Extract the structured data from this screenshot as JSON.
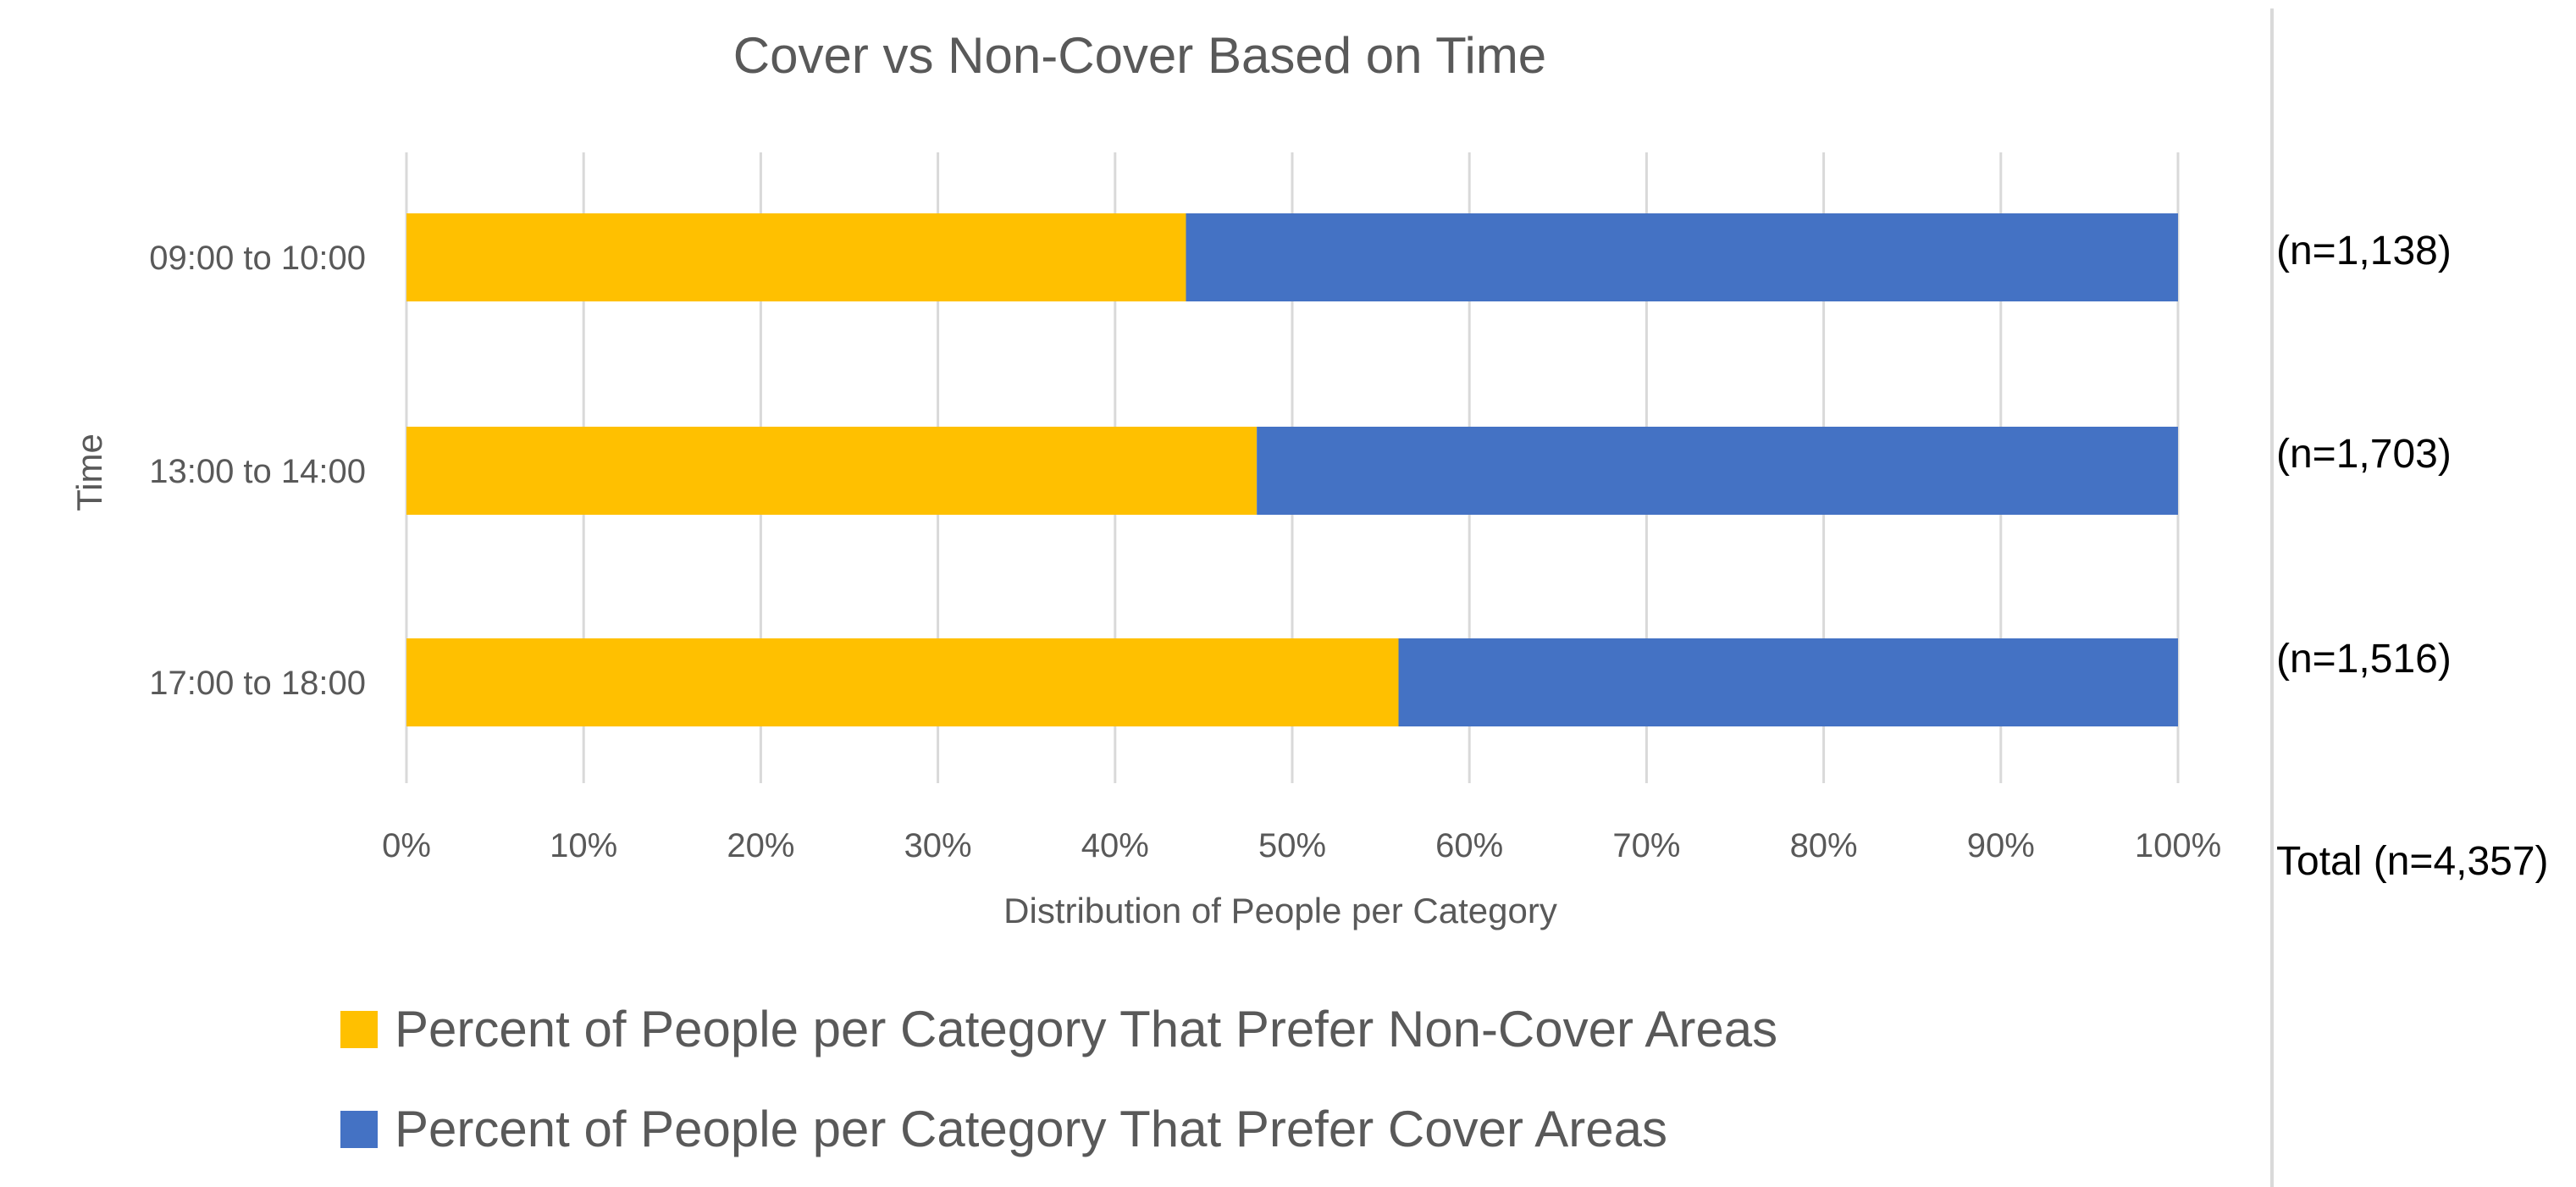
{
  "chart_data": {
    "type": "bar",
    "orientation": "horizontal",
    "stacked": "percent",
    "title": "Cover vs Non-Cover Based on Time",
    "xlabel": "Distribution of People per Category",
    "ylabel": "Time",
    "categories": [
      "09:00 to 10:00",
      "13:00 to 14:00",
      "17:00 to 18:00"
    ],
    "series": [
      {
        "name": "Percent of People per Category That Prefer Non-Cover Areas",
        "color": "#FFC000",
        "values": [
          44,
          48,
          56
        ]
      },
      {
        "name": "Percent of People per Category That Prefer Cover Areas",
        "color": "#4472C4",
        "values": [
          56,
          52,
          44
        ]
      }
    ],
    "xlim": [
      0,
      100
    ],
    "x_ticks": [
      "0%",
      "10%",
      "20%",
      "30%",
      "40%",
      "50%",
      "60%",
      "70%",
      "80%",
      "90%",
      "100%"
    ],
    "grid": true,
    "legend_position": "bottom",
    "annotations": [
      "(n=1,138)",
      "(n=1,703)",
      "(n=1,516)"
    ],
    "total_annotation": "Total (n=4,357)"
  }
}
